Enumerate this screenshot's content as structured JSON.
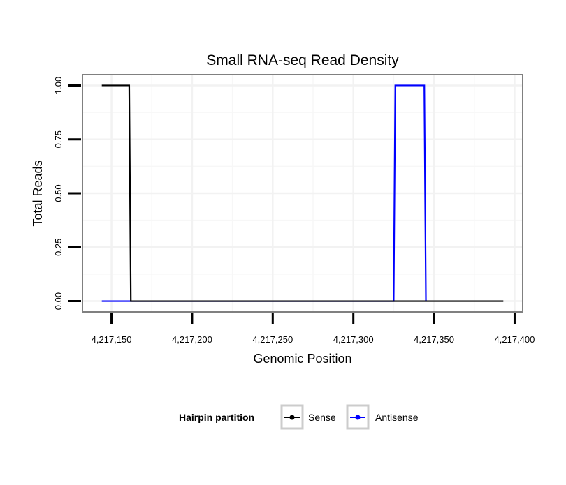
{
  "chart_data": {
    "type": "line",
    "title": "Small RNA-seq Read Density",
    "xlabel": "Genomic Position",
    "ylabel": "Total Reads",
    "xlim": [
      4217132,
      4217405
    ],
    "ylim": [
      -0.05,
      1.05
    ],
    "x_ticks": [
      4217150,
      4217200,
      4217250,
      4217300,
      4217350,
      4217400
    ],
    "x_tick_labels": [
      "4,217,150",
      "4,217,200",
      "4,217,250",
      "4,217,300",
      "4,217,350",
      "4,217,400"
    ],
    "y_ticks": [
      0,
      0.25,
      0.5,
      0.75,
      1.0
    ],
    "y_tick_labels": [
      "0.00",
      "0.25",
      "0.50",
      "0.75",
      "1.00"
    ],
    "grid": true,
    "legend": {
      "title": "Hairpin partition",
      "placement": "bottom"
    },
    "series": [
      {
        "name": "Antisense",
        "color": "#0000ff",
        "x": [
          4217144,
          4217325,
          4217326,
          4217344,
          4217345
        ],
        "y": [
          0,
          0,
          1,
          1,
          0
        ]
      },
      {
        "name": "Sense",
        "color": "#000000",
        "x": [
          4217144,
          4217161,
          4217162,
          4217393
        ],
        "y": [
          1,
          1,
          0,
          0
        ]
      }
    ]
  }
}
